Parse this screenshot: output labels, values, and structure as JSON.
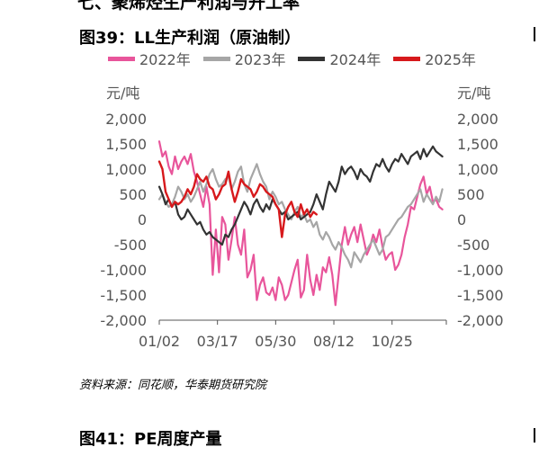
{
  "page": {
    "section_title": "七、聚烯烃生产利润与开工率",
    "figure_title": "图39：LL生产利润（原油制）",
    "source": "资料来源：同花顺，华泰期货研究院",
    "next_figure_title": "图41：PE周度产量"
  },
  "chart_data": {
    "type": "line",
    "title": "图39：LL生产利润（原油制）",
    "unit_left": "元/吨",
    "unit_right": "元/吨",
    "xlabel": "",
    "ylabel": "元/吨",
    "ylim": [
      -2000,
      2000
    ],
    "y_ticks": [
      "2,000",
      "1,500",
      "1,000",
      "500",
      "0",
      "-500",
      "-1,000",
      "-1,500",
      "-2,000"
    ],
    "y_tick_values": [
      2000,
      1500,
      1000,
      500,
      0,
      -500,
      -1000,
      -1500,
      -2000
    ],
    "x_ticks": [
      "01/02",
      "03/17",
      "05/30",
      "08/12",
      "10/25"
    ],
    "x_tick_days": [
      0,
      74,
      148,
      222,
      296
    ],
    "x_range_days": [
      0,
      365
    ],
    "legend_position": "top",
    "grid": false,
    "series": [
      {
        "name": "2022年",
        "color": "#E8559B",
        "x": [
          0,
          4,
          8,
          12,
          16,
          20,
          24,
          28,
          32,
          36,
          40,
          44,
          48,
          52,
          56,
          60,
          64,
          68,
          72,
          76,
          80,
          84,
          88,
          92,
          96,
          100,
          104,
          108,
          112,
          116,
          120,
          124,
          128,
          132,
          136,
          140,
          144,
          148,
          152,
          156,
          160,
          164,
          168,
          172,
          176,
          180,
          184,
          188,
          192,
          196,
          200,
          204,
          208,
          212,
          216,
          220,
          224,
          228,
          232,
          236,
          240,
          244,
          248,
          252,
          256,
          260,
          264,
          268,
          272,
          276,
          280,
          284,
          288,
          292,
          296,
          300,
          304,
          308,
          312,
          316,
          320,
          324,
          328,
          332,
          336,
          340,
          344,
          348,
          352,
          356,
          360
        ],
        "y": [
          1550,
          1250,
          1350,
          1050,
          900,
          1250,
          1000,
          1150,
          1250,
          1100,
          1300,
          950,
          750,
          500,
          250,
          650,
          300,
          -1100,
          -200,
          -1050,
          50,
          -100,
          -800,
          -400,
          50,
          -500,
          -700,
          -200,
          -1150,
          -1000,
          -700,
          -1600,
          -1300,
          -1150,
          -1450,
          -1500,
          -1350,
          -1600,
          -1150,
          -1300,
          -1600,
          -1500,
          -1250,
          -1000,
          -800,
          -1550,
          -1400,
          -700,
          -1200,
          -1500,
          -1100,
          -1400,
          -950,
          -1050,
          -750,
          -1100,
          -1700,
          -1100,
          -500,
          -150,
          -500,
          -300,
          -150,
          -450,
          -100,
          -400,
          -700,
          -550,
          -300,
          -450,
          -200,
          -550,
          -800,
          -700,
          -650,
          -1000,
          -900,
          -700,
          -350,
          -100,
          250,
          200,
          450,
          700,
          850,
          500,
          650,
          350,
          400,
          250,
          200
        ]
      },
      {
        "name": "2023年",
        "color": "#A6A6A6",
        "x": [
          0,
          4,
          8,
          12,
          16,
          20,
          24,
          28,
          32,
          36,
          40,
          44,
          48,
          52,
          56,
          60,
          64,
          68,
          72,
          76,
          80,
          84,
          88,
          92,
          96,
          100,
          104,
          108,
          112,
          116,
          120,
          124,
          128,
          132,
          136,
          140,
          144,
          148,
          152,
          156,
          160,
          164,
          168,
          172,
          176,
          180,
          184,
          188,
          192,
          196,
          200,
          204,
          208,
          212,
          216,
          220,
          224,
          228,
          232,
          236,
          240,
          244,
          248,
          252,
          256,
          260,
          264,
          268,
          272,
          276,
          280,
          284,
          288,
          292,
          296,
          300,
          304,
          308,
          312,
          316,
          320,
          324,
          328,
          332,
          336,
          340,
          344,
          348,
          352,
          356,
          360
        ],
        "y": [
          400,
          500,
          350,
          250,
          300,
          450,
          650,
          550,
          400,
          500,
          350,
          450,
          600,
          750,
          550,
          700,
          900,
          1000,
          800,
          650,
          700,
          800,
          850,
          600,
          750,
          950,
          1050,
          700,
          550,
          800,
          950,
          1100,
          900,
          750,
          650,
          400,
          550,
          450,
          300,
          350,
          200,
          100,
          0,
          150,
          250,
          50,
          100,
          -50,
          0,
          -150,
          -50,
          -300,
          -400,
          -250,
          -350,
          -500,
          -600,
          -450,
          -550,
          -700,
          -800,
          -950,
          -650,
          -750,
          -850,
          -700,
          -600,
          -500,
          -400,
          -550,
          -700,
          -600,
          -350,
          -300,
          -200,
          -100,
          0,
          50,
          150,
          250,
          300,
          400,
          500,
          600,
          350,
          500,
          400,
          300,
          450,
          350,
          600
        ]
      },
      {
        "name": "2024年",
        "color": "#333333",
        "x": [
          0,
          4,
          8,
          12,
          16,
          20,
          24,
          28,
          32,
          36,
          40,
          44,
          48,
          52,
          56,
          60,
          64,
          68,
          72,
          76,
          80,
          84,
          88,
          92,
          96,
          100,
          104,
          108,
          112,
          116,
          120,
          124,
          128,
          132,
          136,
          140,
          144,
          148,
          152,
          156,
          160,
          164,
          168,
          172,
          176,
          180,
          184,
          188,
          192,
          196,
          200,
          204,
          208,
          212,
          216,
          220,
          224,
          228,
          232,
          236,
          240,
          244,
          248,
          252,
          256,
          260,
          264,
          268,
          272,
          276,
          280,
          284,
          288,
          292,
          296,
          300,
          304,
          308,
          312,
          316,
          320,
          324,
          328,
          332,
          336,
          340,
          344,
          348,
          352,
          356,
          360
        ],
        "y": [
          650,
          500,
          300,
          400,
          250,
          350,
          100,
          0,
          50,
          200,
          100,
          0,
          -100,
          -50,
          -200,
          -300,
          -250,
          -350,
          -400,
          -450,
          -500,
          -300,
          -350,
          -200,
          -100,
          50,
          200,
          350,
          250,
          100,
          300,
          400,
          250,
          150,
          300,
          200,
          400,
          300,
          200,
          100,
          150,
          0,
          50,
          100,
          150,
          0,
          50,
          100,
          150,
          300,
          500,
          350,
          200,
          500,
          750,
          650,
          550,
          750,
          1050,
          900,
          1000,
          1050,
          950,
          800,
          1000,
          900,
          850,
          750,
          950,
          1100,
          1050,
          1200,
          1050,
          950,
          1100,
          1200,
          1150,
          1300,
          1200,
          1100,
          1250,
          1300,
          1350,
          1200,
          1400,
          1250,
          1350,
          1450,
          1350,
          1300,
          1250
        ]
      },
      {
        "name": "2025年",
        "color": "#D7191C",
        "x": [
          0,
          4,
          8,
          12,
          16,
          20,
          24,
          28,
          32,
          36,
          40,
          44,
          48,
          52,
          56,
          60,
          64,
          68,
          72,
          76,
          80,
          84,
          88,
          92,
          96,
          100,
          104,
          108,
          112,
          116,
          120,
          124,
          128,
          132,
          136,
          140,
          144,
          148,
          152,
          156,
          160,
          164,
          168,
          172,
          176,
          180,
          184,
          188,
          192,
          196,
          200
        ],
        "y": [
          1150,
          1000,
          550,
          400,
          250,
          350,
          300,
          350,
          450,
          600,
          500,
          650,
          900,
          800,
          750,
          850,
          650,
          600,
          400,
          500,
          650,
          700,
          950,
          600,
          350,
          550,
          800,
          700,
          650,
          600,
          450,
          550,
          700,
          650,
          550,
          500,
          450,
          300,
          200,
          -350,
          100,
          250,
          350,
          150,
          50,
          300,
          100,
          200,
          50,
          150,
          100
        ]
      }
    ]
  }
}
